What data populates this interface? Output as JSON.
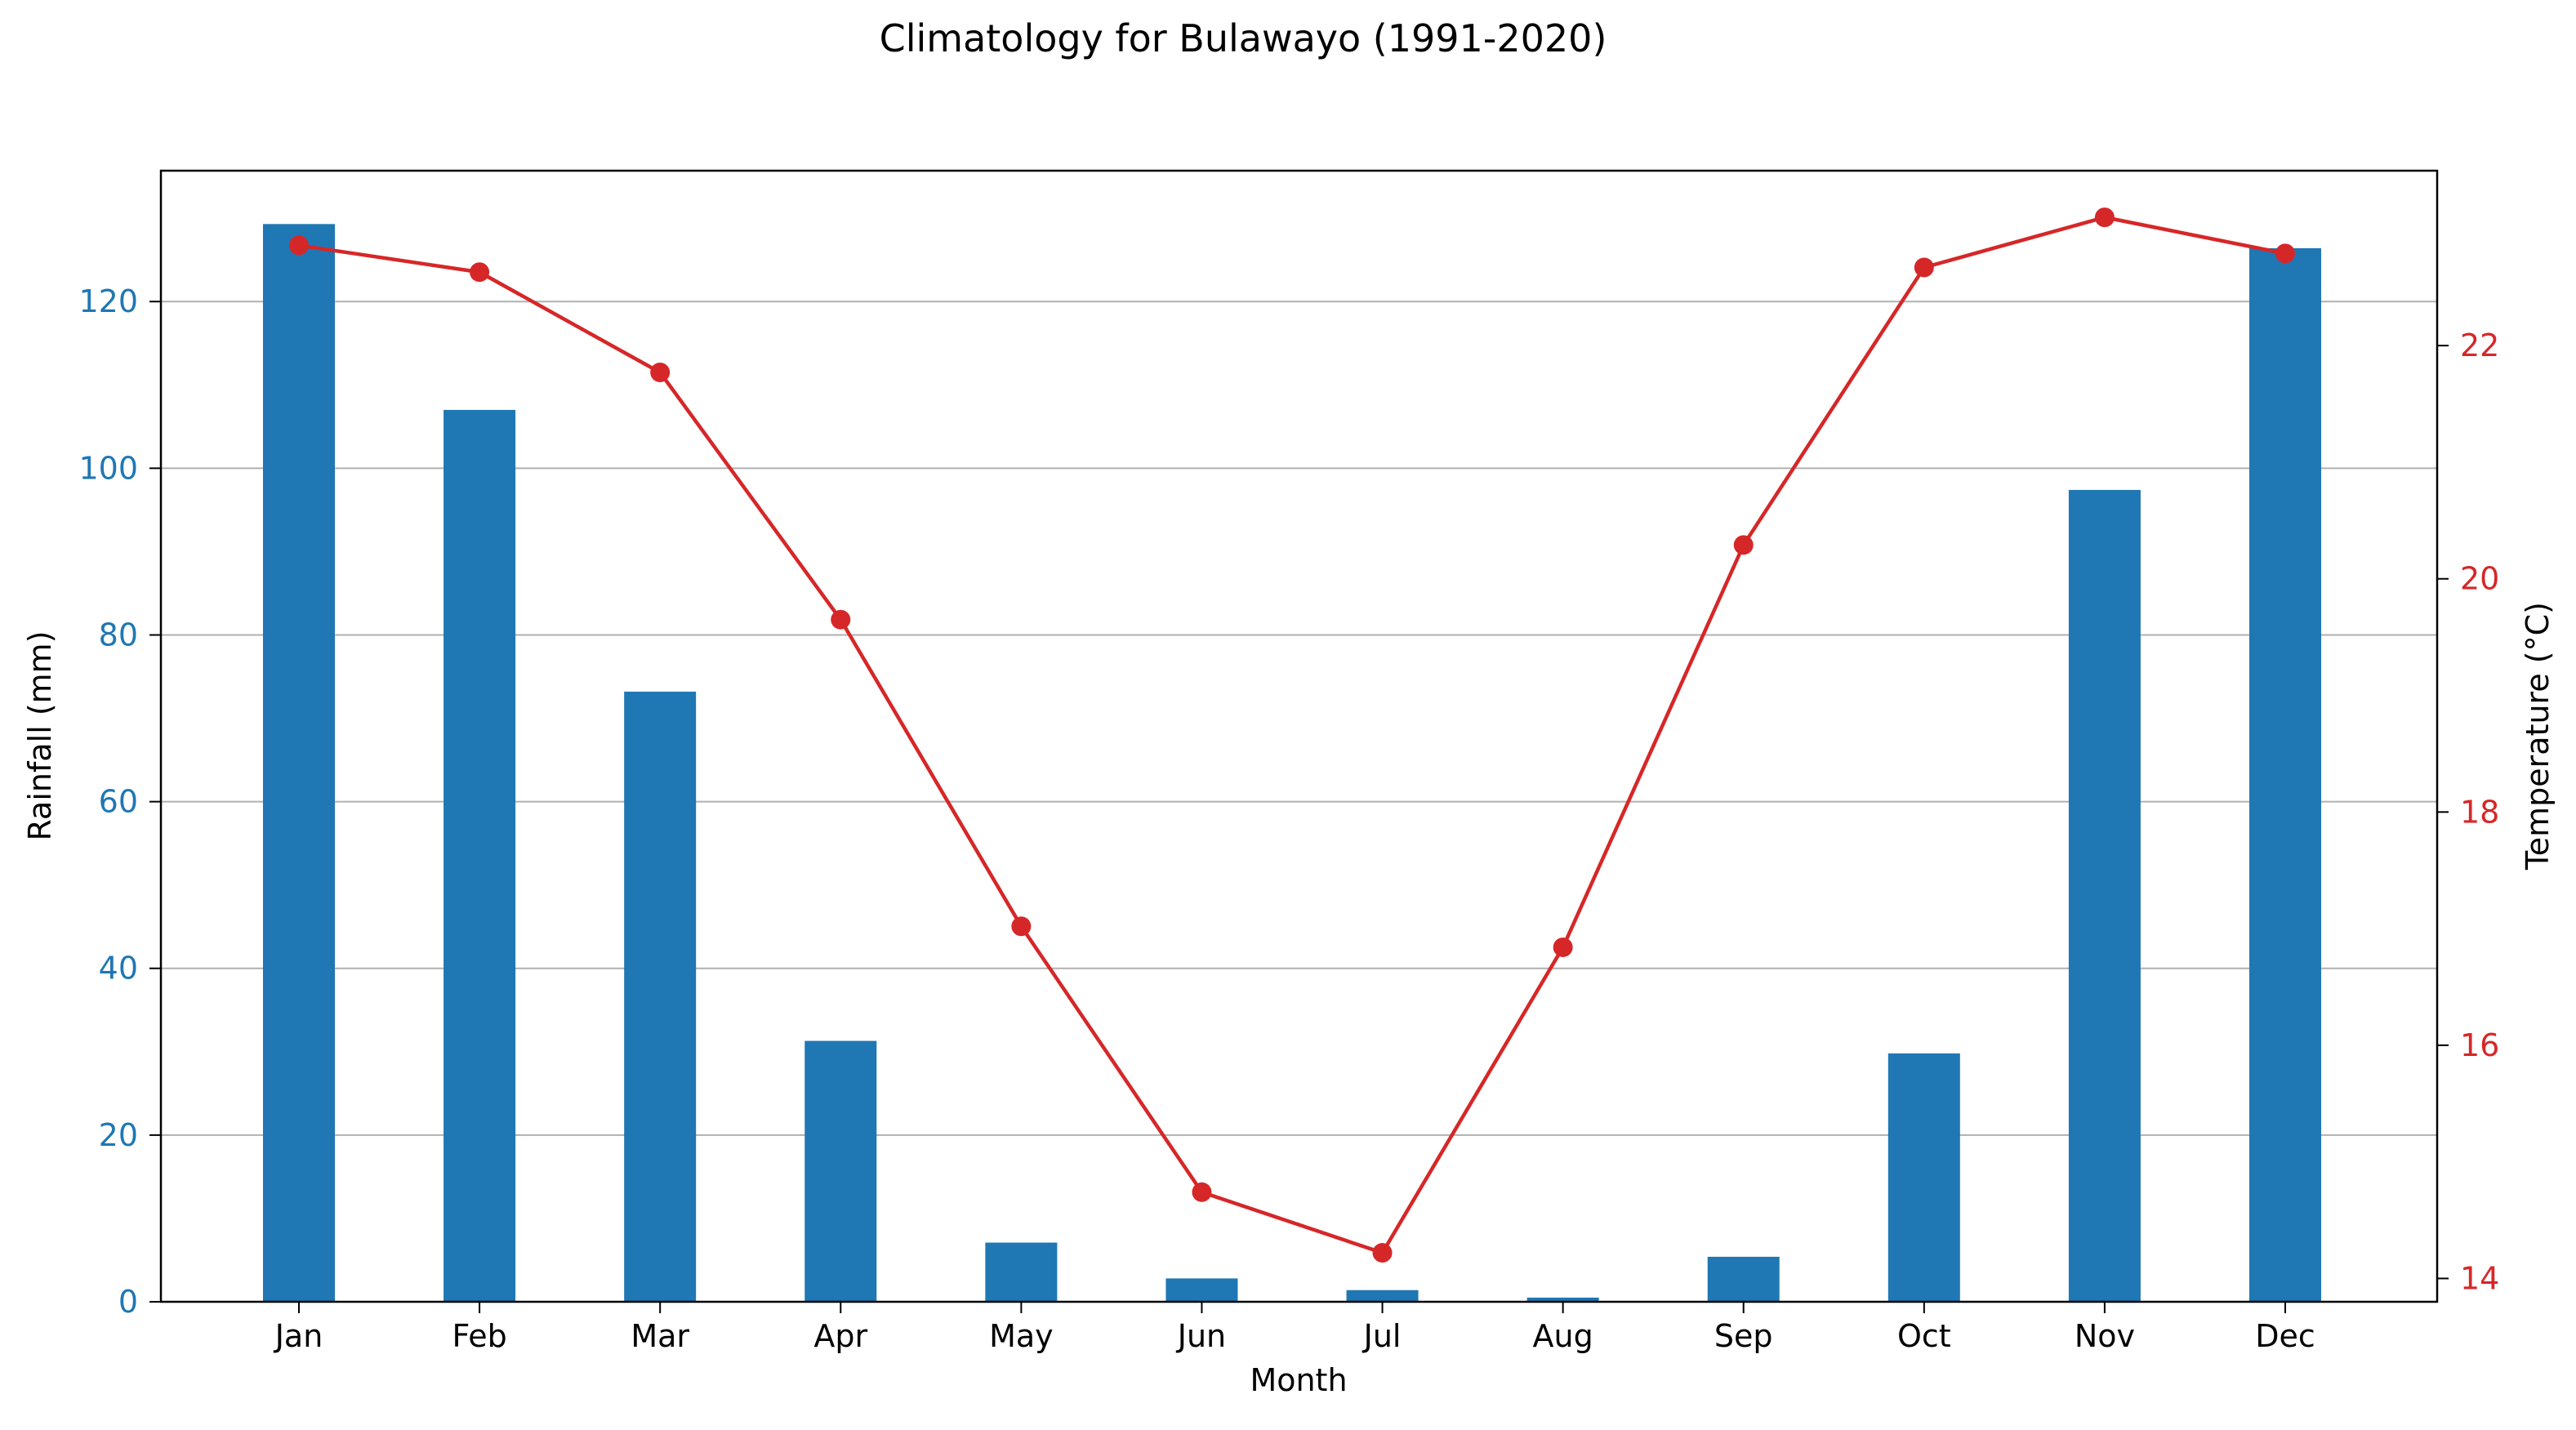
{
  "chart_data": {
    "type": "bar+line",
    "title": "Climatology for Bulawayo (1991-2020)",
    "xlabel": "Month",
    "categories": [
      "Jan",
      "Feb",
      "Mar",
      "Apr",
      "May",
      "Jun",
      "Jul",
      "Aug",
      "Sep",
      "Oct",
      "Nov",
      "Dec"
    ],
    "y_left": {
      "label": "Rainfall (mm)",
      "ticks": [
        "0",
        "20",
        "40",
        "60",
        "80",
        "100",
        "120"
      ],
      "lim": [
        0,
        135.7
      ],
      "color": "#1f77b4"
    },
    "y_right": {
      "label": "Temperature (°C)",
      "ticks": [
        "14",
        "16",
        "18",
        "20",
        "22"
      ],
      "lim": [
        13.8,
        23.5
      ],
      "color": "#d62728"
    },
    "series": [
      {
        "type": "bar",
        "axis": "left",
        "color": "#1f77b4",
        "values": [
          129.3,
          107.0,
          73.2,
          31.3,
          7.1,
          2.8,
          1.4,
          0.5,
          5.4,
          29.8,
          97.4,
          126.4
        ]
      },
      {
        "type": "line",
        "axis": "right",
        "color": "#d62728",
        "values": [
          22.86,
          22.63,
          21.77,
          19.65,
          17.02,
          14.74,
          14.22,
          16.84,
          20.29,
          22.67,
          23.1,
          22.79
        ]
      }
    ],
    "grid": "horizontal-left-axis"
  }
}
